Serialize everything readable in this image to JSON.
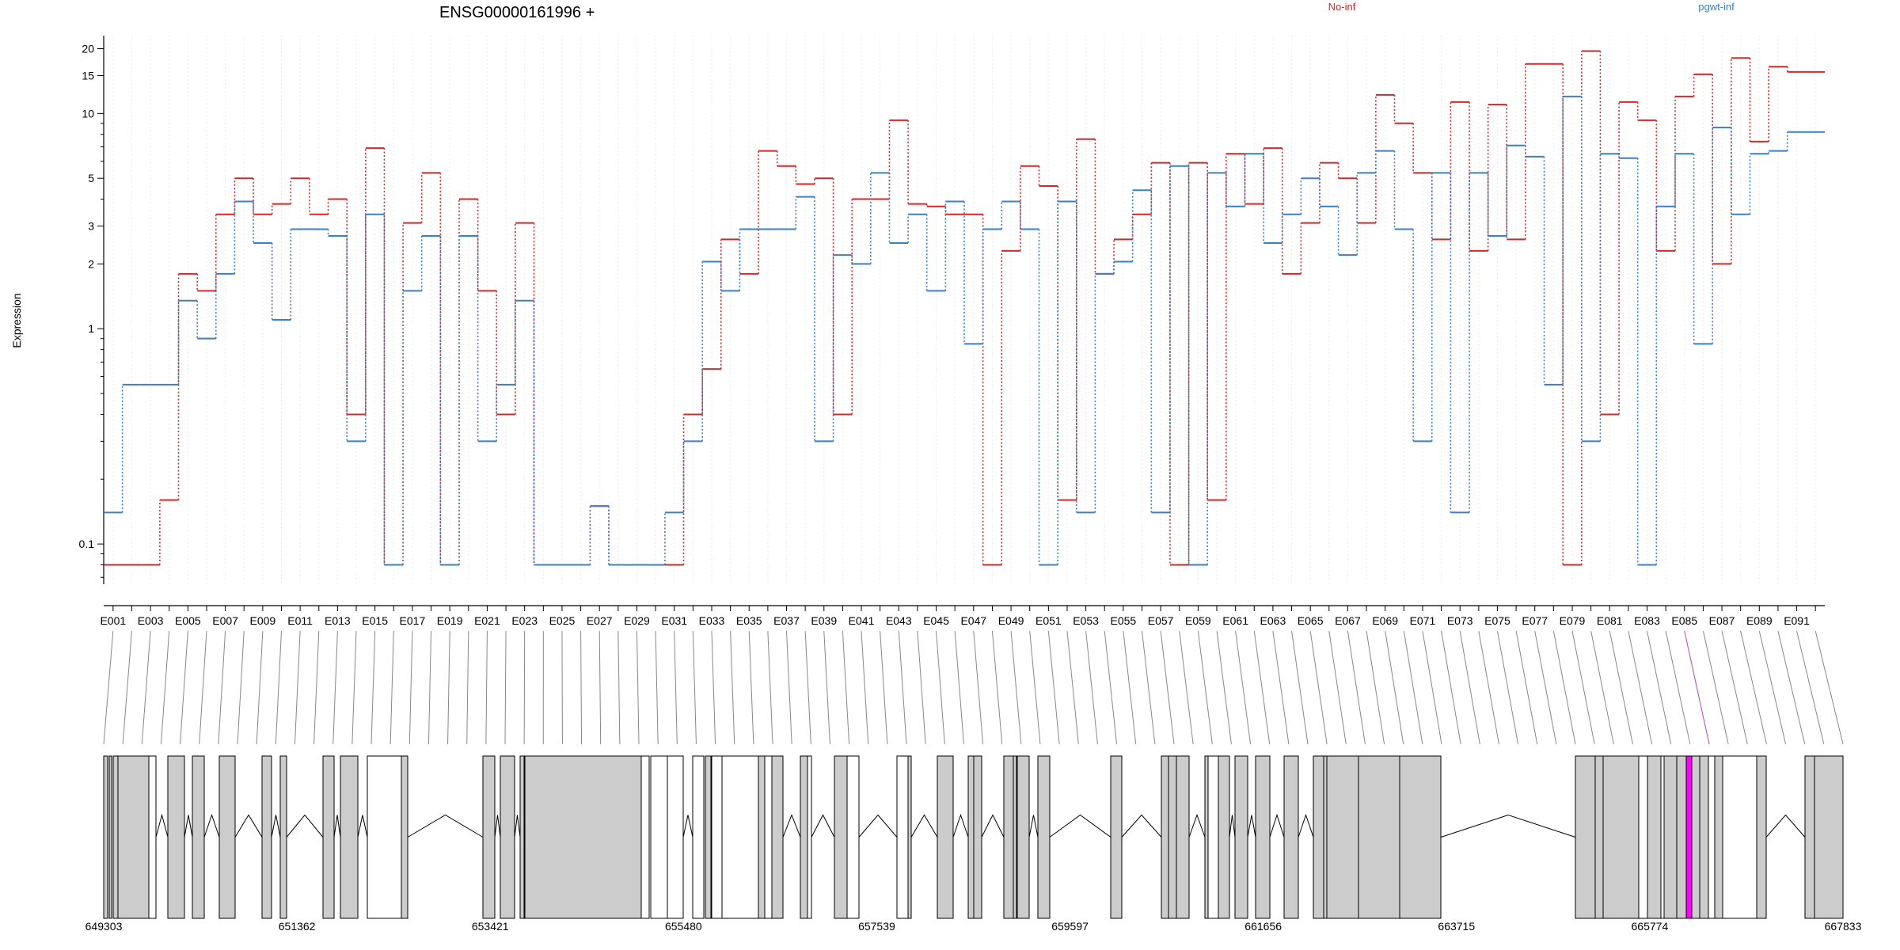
{
  "chart_data": {
    "type": "line",
    "title": "ENSG00000161996 +",
    "ylabel": "Expression",
    "yscale": "log",
    "ylim": [
      0.065,
      23
    ],
    "yticks": [
      0.1,
      1,
      2,
      3,
      5,
      10,
      15,
      20
    ],
    "ytick_labels": [
      "0.1",
      "1",
      "2",
      "3",
      "5",
      "10",
      "15",
      "20"
    ],
    "x_tick_labels": [
      "E001",
      "E003",
      "E005",
      "E007",
      "E009",
      "E011",
      "E013",
      "E015",
      "E017",
      "E019",
      "E021",
      "E023",
      "E025",
      "E027",
      "E029",
      "E031",
      "E033",
      "E035",
      "E037",
      "E039",
      "E041",
      "E043",
      "E045",
      "E047",
      "E049",
      "E051",
      "E053",
      "E055",
      "E057",
      "E059",
      "E061",
      "E063",
      "E065",
      "E067",
      "E069",
      "E071",
      "E073",
      "E075",
      "E077",
      "E079",
      "E081",
      "E083",
      "E085",
      "E087",
      "E089",
      "E091"
    ],
    "exons": [
      "E001",
      "E002",
      "E003",
      "E004",
      "E005",
      "E006",
      "E007",
      "E008",
      "E009",
      "E010",
      "E011",
      "E012",
      "E013",
      "E014",
      "E015",
      "E016",
      "E017",
      "E018",
      "E019",
      "E020",
      "E021",
      "E022",
      "E023",
      "E024",
      "E025",
      "E026",
      "E027",
      "E028",
      "E029",
      "E030",
      "E031",
      "E032",
      "E033",
      "E034",
      "E035",
      "E036",
      "E037",
      "E038",
      "E039",
      "E040",
      "E041",
      "E042",
      "E043",
      "E044",
      "E045",
      "E046",
      "E047",
      "E048",
      "E049",
      "E050",
      "E051",
      "E052",
      "E053",
      "E054",
      "E055",
      "E056",
      "E057",
      "E058",
      "E059",
      "E060",
      "E061",
      "E062",
      "E063",
      "E064",
      "E065",
      "E066",
      "E067",
      "E068",
      "E069",
      "E070",
      "E071",
      "E072",
      "E073",
      "E074",
      "E075",
      "E076",
      "E077",
      "E078",
      "E079",
      "E080",
      "E081",
      "E082",
      "E083",
      "E084",
      "E085",
      "E086",
      "E087",
      "E088",
      "E089",
      "E090",
      "E091",
      "E092"
    ],
    "series": [
      {
        "name": "No-inf",
        "color": "#d62728",
        "values": [
          0.08,
          0.08,
          0.08,
          0.16,
          1.8,
          1.5,
          3.4,
          5,
          3.4,
          3.8,
          5,
          3.4,
          4,
          0.4,
          6.9,
          0.08,
          3.1,
          5.3,
          0.08,
          4,
          1.5,
          0.4,
          3.1,
          0.08,
          0.08,
          0.08,
          0.15,
          0.08,
          0.08,
          0.08,
          0.08,
          0.4,
          0.65,
          2.6,
          1.8,
          6.7,
          5.7,
          4.7,
          5,
          0.4,
          4,
          4,
          9.3,
          3.8,
          3.7,
          3.4,
          3.4,
          0.08,
          2.3,
          5.7,
          4.6,
          0.16,
          7.6,
          1.8,
          2.6,
          3.4,
          5.9,
          0.08,
          5.9,
          0.16,
          6.5,
          3.8,
          6.9,
          1.8,
          3.1,
          5.9,
          5,
          3.1,
          12.2,
          9,
          5.3,
          2.6,
          11.3,
          2.3,
          11,
          2.6,
          17,
          17,
          0.08,
          19.5,
          0.4,
          11.3,
          9.3,
          2.3,
          12,
          15.2,
          2,
          18.1,
          7.4,
          16.5,
          15.6,
          15.6
        ]
      },
      {
        "name": "pgwt-inf",
        "color": "#3b7fc4",
        "values": [
          0.14,
          0.55,
          0.55,
          0.55,
          1.35,
          0.9,
          1.8,
          3.9,
          2.5,
          1.1,
          2.9,
          2.9,
          2.7,
          0.3,
          3.4,
          0.08,
          1.5,
          2.7,
          0.08,
          2.7,
          0.3,
          0.55,
          1.35,
          0.08,
          0.08,
          0.08,
          0.15,
          0.08,
          0.08,
          0.08,
          0.14,
          0.3,
          2.05,
          1.5,
          2.9,
          2.9,
          2.9,
          4.1,
          0.3,
          2.2,
          2,
          5.3,
          2.5,
          3.4,
          1.5,
          3.9,
          0.85,
          2.9,
          3.9,
          2.9,
          0.08,
          3.9,
          0.14,
          1.8,
          2.05,
          4.4,
          0.14,
          5.7,
          0.08,
          5.3,
          3.7,
          6.5,
          2.5,
          3.4,
          5,
          3.7,
          2.2,
          5.3,
          6.7,
          2.9,
          0.3,
          5.3,
          0.14,
          5.3,
          2.7,
          7.1,
          6.3,
          0.55,
          12,
          0.3,
          6.5,
          6.2,
          0.08,
          3.7,
          6.5,
          0.85,
          8.6,
          3.4,
          6.5,
          6.7,
          8.2,
          8.2
        ]
      }
    ],
    "legend": [
      {
        "label": "No-inf",
        "color": "#d62728"
      },
      {
        "label": "pgwt-inf",
        "color": "#3b7fc4"
      }
    ],
    "gene_model": {
      "genomic_ticks": [
        "649303",
        "651362",
        "653421",
        "655480",
        "657539",
        "659597",
        "661656",
        "663715",
        "665774",
        "667833"
      ],
      "exon_fill": "#cccccc",
      "highlight_fill": "#ff00ff",
      "highlight_exon": "E085"
    }
  }
}
